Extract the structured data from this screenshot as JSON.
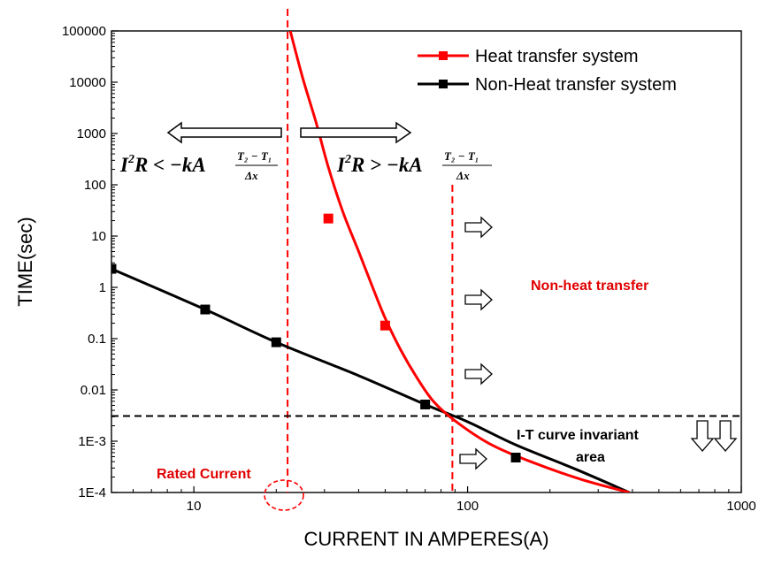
{
  "chart_data": {
    "type": "line",
    "xlabel": "CURRENT IN AMPERES(A)",
    "ylabel": "TIME(sec)",
    "xscale": "log",
    "yscale": "log",
    "xlim": [
      5,
      1000
    ],
    "ylim": [
      0.0001,
      100000
    ],
    "x_ticks": [
      10,
      100,
      1000
    ],
    "x_tick_labels": [
      "10",
      "100",
      "1000"
    ],
    "y_ticks": [
      0.0001,
      0.001,
      0.01,
      0.1,
      1,
      10,
      100,
      1000,
      10000,
      100000
    ],
    "y_tick_labels": [
      "1E-4",
      "1E-3",
      "0.01",
      "0.1",
      "1",
      "10",
      "100",
      "1000",
      "10000",
      "100000"
    ],
    "grid": false,
    "legend_position": "top-right",
    "series": [
      {
        "name": "Heat transfer system",
        "color": "#ff0000",
        "markers": [
          {
            "x": 31,
            "y": 22
          },
          {
            "x": 50,
            "y": 0.18
          }
        ],
        "curve": [
          {
            "x": 22.5,
            "y": 100000
          },
          {
            "x": 25,
            "y": 12000
          },
          {
            "x": 28,
            "y": 1600
          },
          {
            "x": 31,
            "y": 220
          },
          {
            "x": 35,
            "y": 30
          },
          {
            "x": 40,
            "y": 5
          },
          {
            "x": 45,
            "y": 1
          },
          {
            "x": 50,
            "y": 0.25
          },
          {
            "x": 57,
            "y": 0.06
          },
          {
            "x": 65,
            "y": 0.018
          },
          {
            "x": 75,
            "y": 0.006
          },
          {
            "x": 90,
            "y": 0.0025
          },
          {
            "x": 120,
            "y": 0.0009
          },
          {
            "x": 170,
            "y": 0.0004
          },
          {
            "x": 260,
            "y": 0.00018
          },
          {
            "x": 390,
            "y": 0.0001
          }
        ]
      },
      {
        "name": "Non-Heat transfer system",
        "color": "#000000",
        "markers": [
          {
            "x": 5,
            "y": 2.3
          },
          {
            "x": 11,
            "y": 0.37
          },
          {
            "x": 20,
            "y": 0.085
          },
          {
            "x": 70,
            "y": 0.0052
          },
          {
            "x": 150,
            "y": 0.00048
          }
        ],
        "curve": [
          {
            "x": 5,
            "y": 2.3
          },
          {
            "x": 11,
            "y": 0.37
          },
          {
            "x": 20,
            "y": 0.085
          },
          {
            "x": 40,
            "y": 0.019
          },
          {
            "x": 70,
            "y": 0.0052
          },
          {
            "x": 100,
            "y": 0.0024
          },
          {
            "x": 150,
            "y": 0.00085
          },
          {
            "x": 250,
            "y": 0.00028
          },
          {
            "x": 390,
            "y": 0.0001
          }
        ]
      }
    ],
    "reference_lines": [
      {
        "orientation": "vertical",
        "x": 22,
        "color": "#ff0000",
        "style": "dashed"
      },
      {
        "orientation": "vertical",
        "x": 88,
        "color": "#ff0000",
        "style": "dashed",
        "y_top": 100
      },
      {
        "orientation": "horizontal",
        "y": 0.0031,
        "color": "#000000",
        "style": "dashed"
      }
    ],
    "annotations": {
      "non_heat_transfer": "Non-heat transfer",
      "invariant_line1": "I-T curve invariant",
      "invariant_line2": "area",
      "rated_current": "Rated Current",
      "formula_left": "I²R < −kA(T₂ − T₁)/Δx",
      "formula_right": "I²R > −kA(T₂ − T₁)/Δx"
    }
  }
}
